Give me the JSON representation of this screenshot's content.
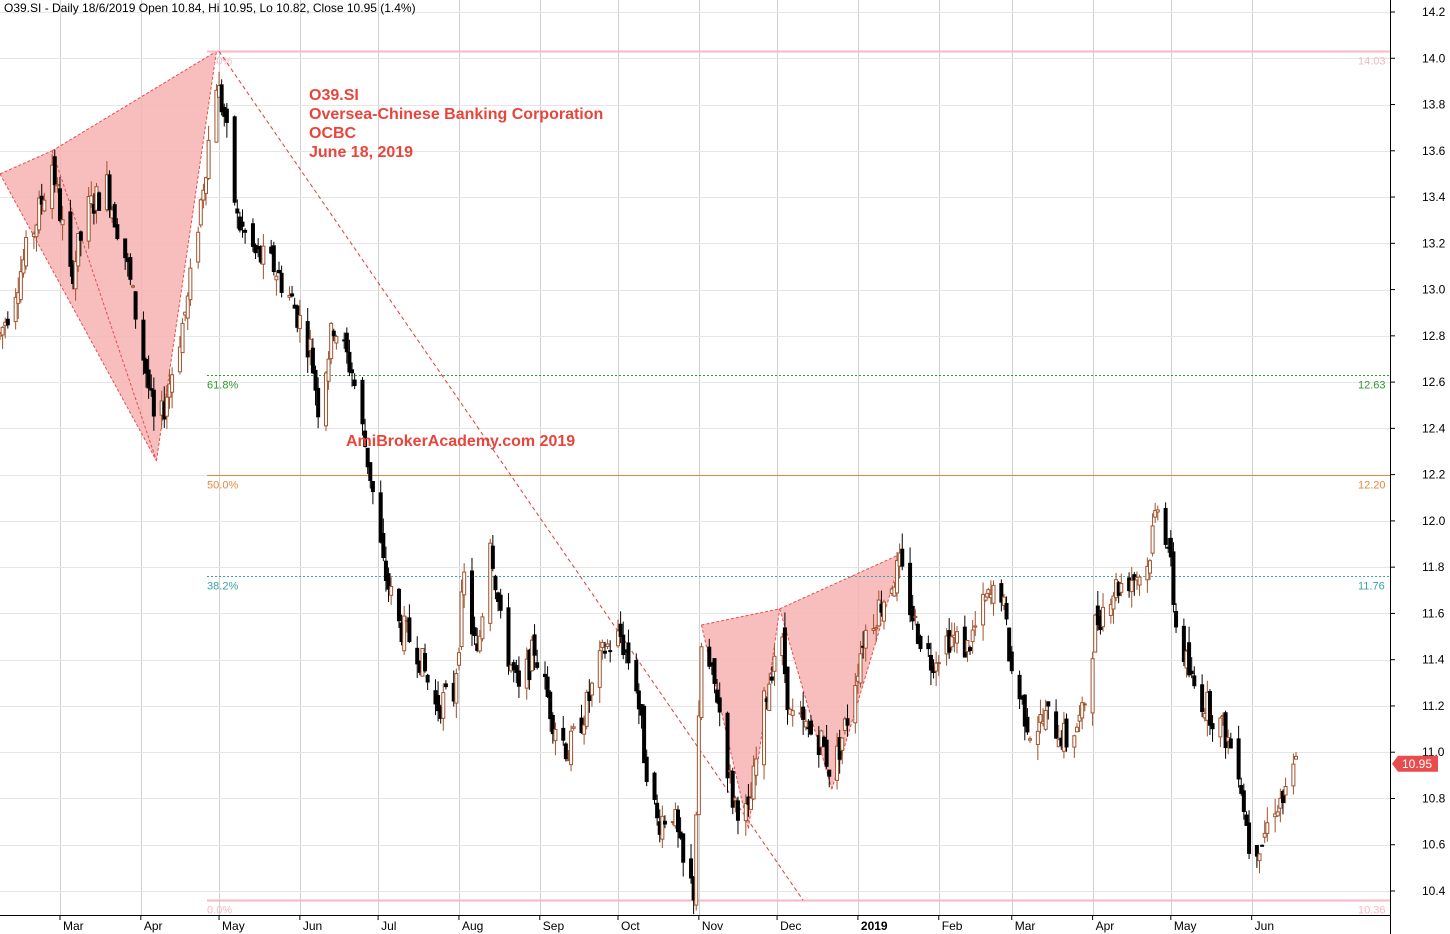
{
  "header": "O39.SI - Daily 18/6/2019 Open 10.84, Hi 10.95, Lo 10.82, Close 10.95 (1.4%)",
  "annotation": {
    "lines": [
      "O39.SI",
      "Oversea-Chinese Banking Corporation",
      "OCBC",
      "June 18, 2019"
    ],
    "watermark": "AmiBrokerAcademy.com  2019"
  },
  "colors": {
    "up_candle": "#a0522d",
    "down_candle": "#000000",
    "pattern_fill": "#f7b3b3",
    "pattern_stroke": "#e84c4c",
    "fib_0": "#f5b8c8",
    "fib_382": "#3aa3a3",
    "fib_50": "#e8873c",
    "fib_618": "#2a9a2a",
    "price_badge": "#e84c4c",
    "annotation": "#e8453c"
  },
  "chart_data": {
    "type": "candlestick",
    "symbol": "O39.SI",
    "ylim": [
      10.3,
      14.2
    ],
    "y_ticks": [
      "10.4",
      "10.6",
      "10.8",
      "11.0",
      "11.2",
      "11.4",
      "11.6",
      "11.8",
      "12.0",
      "12.2",
      "12.4",
      "12.6",
      "12.8",
      "13.0",
      "13.2",
      "13.4",
      "13.6",
      "13.8",
      "14.0",
      "14.2"
    ],
    "x_labels": [
      {
        "label": "Mar",
        "date": "2018-03-01"
      },
      {
        "label": "Apr",
        "date": "2018-04-01"
      },
      {
        "label": "May",
        "date": "2018-05-01"
      },
      {
        "label": "Jun",
        "date": "2018-06-01"
      },
      {
        "label": "Jul",
        "date": "2018-07-01"
      },
      {
        "label": "Aug",
        "date": "2018-08-01"
      },
      {
        "label": "Sep",
        "date": "2018-09-01"
      },
      {
        "label": "Oct",
        "date": "2018-10-01"
      },
      {
        "label": "Nov",
        "date": "2018-11-01"
      },
      {
        "label": "Dec",
        "date": "2018-12-01"
      },
      {
        "label": "2019",
        "date": "2019-01-01",
        "bold": true
      },
      {
        "label": "Feb",
        "date": "2019-02-01"
      },
      {
        "label": "Mar",
        "date": "2019-03-01"
      },
      {
        "label": "Apr",
        "date": "2019-04-01"
      },
      {
        "label": "May",
        "date": "2019-05-01"
      },
      {
        "label": "Jun",
        "date": "2019-06-01"
      }
    ],
    "date_range": [
      "2018-02-06",
      "2019-06-18"
    ],
    "fib_levels": [
      {
        "pct": "0.0%",
        "value": 14.03,
        "label": "14.03",
        "color_key": "fib_0",
        "style": "solid"
      },
      {
        "pct": "61.8%",
        "value": 12.63,
        "label": "12.63",
        "color_key": "fib_618",
        "style": "dashed"
      },
      {
        "pct": "50.0%",
        "value": 12.2,
        "label": "12.20",
        "color_key": "fib_50",
        "style": "solid"
      },
      {
        "pct": "38.2%",
        "value": 11.76,
        "label": "11.76",
        "color_key": "fib_382",
        "style": "dashed"
      },
      {
        "pct": "0.0%",
        "value": 10.36,
        "label": "10.36",
        "color_key": "fib_0",
        "style": "solid"
      }
    ],
    "fib_start_date": "2018-05-01",
    "trendline": {
      "from": {
        "date": "2018-05-01",
        "price": 14.03
      },
      "to": {
        "date": "2018-12-11",
        "price": 10.36
      }
    },
    "patterns": [
      {
        "points": [
          {
            "date": "2018-02-06",
            "price": 13.5
          },
          {
            "date": "2018-02-26",
            "price": 13.6
          },
          {
            "date": "2018-04-07",
            "price": 12.26
          },
          {
            "date": "2018-04-30",
            "price": 14.03
          }
        ],
        "fill_triangles": [
          [
            0,
            1,
            2
          ],
          [
            1,
            2,
            3
          ]
        ]
      },
      {
        "points": [
          {
            "date": "2018-11-02",
            "price": 11.55
          },
          {
            "date": "2018-11-20",
            "price": 10.67
          },
          {
            "date": "2018-12-02",
            "price": 11.62
          },
          {
            "date": "2018-12-22",
            "price": 10.84
          },
          {
            "date": "2019-01-18",
            "price": 11.86
          }
        ],
        "fill_triangles": [
          [
            0,
            1,
            2
          ],
          [
            2,
            3,
            4
          ]
        ]
      }
    ],
    "last_price": {
      "value": 10.95,
      "label": "10.95"
    },
    "ohlc_anchors": [
      [
        "2018-02-06",
        12.8
      ],
      [
        "2018-02-13",
        13.05
      ],
      [
        "2018-02-20",
        13.3
      ],
      [
        "2018-02-26",
        13.55
      ],
      [
        "2018-03-05",
        13.05
      ],
      [
        "2018-03-12",
        13.35
      ],
      [
        "2018-03-19",
        13.45
      ],
      [
        "2018-03-26",
        13.15
      ],
      [
        "2018-04-03",
        12.65
      ],
      [
        "2018-04-07",
        12.35
      ],
      [
        "2018-04-12",
        12.6
      ],
      [
        "2018-04-19",
        12.95
      ],
      [
        "2018-04-26",
        13.55
      ],
      [
        "2018-04-30",
        13.9
      ],
      [
        "2018-05-03",
        13.75
      ],
      [
        "2018-05-08",
        13.3
      ],
      [
        "2018-05-15",
        13.15
      ],
      [
        "2018-05-22",
        13.1
      ],
      [
        "2018-05-29",
        12.95
      ],
      [
        "2018-06-05",
        12.75
      ],
      [
        "2018-06-08",
        12.5
      ],
      [
        "2018-06-14",
        12.85
      ],
      [
        "2018-06-21",
        12.65
      ],
      [
        "2018-06-28",
        12.2
      ],
      [
        "2018-07-03",
        11.8
      ],
      [
        "2018-07-09",
        11.55
      ],
      [
        "2018-07-16",
        11.45
      ],
      [
        "2018-07-23",
        11.2
      ],
      [
        "2018-07-30",
        11.25
      ],
      [
        "2018-08-03",
        11.75
      ],
      [
        "2018-08-08",
        11.4
      ],
      [
        "2018-08-13",
        11.95
      ],
      [
        "2018-08-17",
        11.55
      ],
      [
        "2018-08-24",
        11.25
      ],
      [
        "2018-08-30",
        11.45
      ],
      [
        "2018-09-06",
        11.15
      ],
      [
        "2018-09-12",
        11.0
      ],
      [
        "2018-09-19",
        11.2
      ],
      [
        "2018-09-26",
        11.45
      ],
      [
        "2018-10-02",
        11.5
      ],
      [
        "2018-10-08",
        11.3
      ],
      [
        "2018-10-11",
        11.0
      ],
      [
        "2018-10-16",
        10.7
      ],
      [
        "2018-10-22",
        10.75
      ],
      [
        "2018-10-26",
        10.5
      ],
      [
        "2018-10-30",
        10.4
      ],
      [
        "2018-11-02",
        11.45
      ],
      [
        "2018-11-08",
        11.25
      ],
      [
        "2018-11-14",
        10.8
      ],
      [
        "2018-11-20",
        10.72
      ],
      [
        "2018-11-26",
        11.2
      ],
      [
        "2018-12-02",
        11.55
      ],
      [
        "2018-12-06",
        11.15
      ],
      [
        "2018-12-12",
        11.1
      ],
      [
        "2018-12-18",
        11.05
      ],
      [
        "2018-12-22",
        10.9
      ],
      [
        "2018-12-28",
        11.15
      ],
      [
        "2019-01-03",
        11.5
      ],
      [
        "2019-01-10",
        11.65
      ],
      [
        "2019-01-17",
        11.8
      ],
      [
        "2019-01-23",
        11.55
      ],
      [
        "2019-01-29",
        11.4
      ],
      [
        "2019-02-05",
        11.5
      ],
      [
        "2019-02-12",
        11.45
      ],
      [
        "2019-02-19",
        11.65
      ],
      [
        "2019-02-25",
        11.7
      ],
      [
        "2019-03-01",
        11.35
      ],
      [
        "2019-03-08",
        11.1
      ],
      [
        "2019-03-15",
        11.15
      ],
      [
        "2019-03-22",
        11.05
      ],
      [
        "2019-03-28",
        11.15
      ],
      [
        "2019-04-02",
        11.55
      ],
      [
        "2019-04-08",
        11.7
      ],
      [
        "2019-04-15",
        11.75
      ],
      [
        "2019-04-22",
        11.8
      ],
      [
        "2019-04-26",
        12.1
      ],
      [
        "2019-04-30",
        11.9
      ],
      [
        "2019-05-03",
        11.55
      ],
      [
        "2019-05-09",
        11.3
      ],
      [
        "2019-05-15",
        11.2
      ],
      [
        "2019-05-21",
        11.1
      ],
      [
        "2019-05-27",
        10.95
      ],
      [
        "2019-05-31",
        10.6
      ],
      [
        "2019-06-05",
        10.62
      ],
      [
        "2019-06-10",
        10.78
      ],
      [
        "2019-06-14",
        10.8
      ],
      [
        "2019-06-18",
        10.95
      ]
    ]
  }
}
